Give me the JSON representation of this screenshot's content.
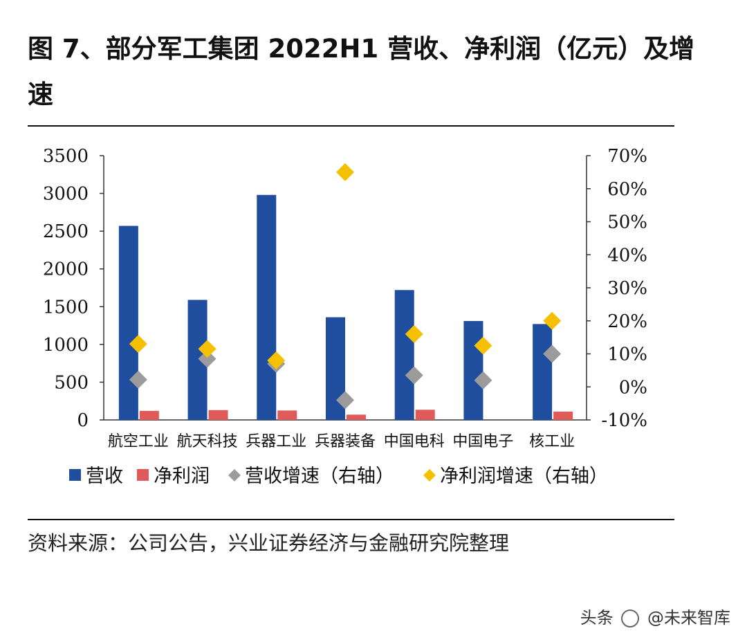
{
  "title": "图 7、部分军工集团 2022H1 营收、净利润（亿元）及增速",
  "source": "资料来源：公司公告，兴业证券经济与金融研究院整理",
  "watermark": {
    "prefix": "头条",
    "handle": "@未来智库"
  },
  "chart_data": {
    "type": "bar",
    "categories": [
      "航空工业",
      "航天科技",
      "兵器工业",
      "兵器装备",
      "中国电科",
      "中国电子",
      "核工业"
    ],
    "series": [
      {
        "name": "营收",
        "type": "bar",
        "axis": "left",
        "color": "#1f4e9e",
        "values": [
          2570,
          1590,
          2980,
          1360,
          1720,
          1310,
          1270
        ]
      },
      {
        "name": "净利润",
        "type": "bar",
        "axis": "left",
        "color": "#e05a5a",
        "values": [
          120,
          130,
          125,
          70,
          135,
          0,
          110
        ]
      },
      {
        "name": "营收增速（右轴）",
        "type": "scatter",
        "axis": "right",
        "marker": "diamond",
        "color": "#9b9b9b",
        "values": [
          0.022,
          0.085,
          0.07,
          -0.04,
          0.035,
          0.02,
          0.1
        ]
      },
      {
        "name": "净利润增速（右轴）",
        "type": "scatter",
        "axis": "right",
        "marker": "diamond",
        "color": "#f5c000",
        "values": [
          0.13,
          0.115,
          0.08,
          0.65,
          0.16,
          0.125,
          0.2
        ]
      }
    ],
    "left_axis": {
      "min": 0,
      "max": 3500,
      "ticks": [
        "0",
        "500",
        "1000",
        "1500",
        "2000",
        "2500",
        "3000",
        "3500"
      ]
    },
    "right_axis": {
      "min": -0.1,
      "max": 0.7,
      "ticks": [
        "-10%",
        "0%",
        "10%",
        "20%",
        "30%",
        "40%",
        "50%",
        "60%",
        "70%"
      ]
    },
    "grid": false,
    "legend": {
      "placement": "bottom"
    }
  }
}
